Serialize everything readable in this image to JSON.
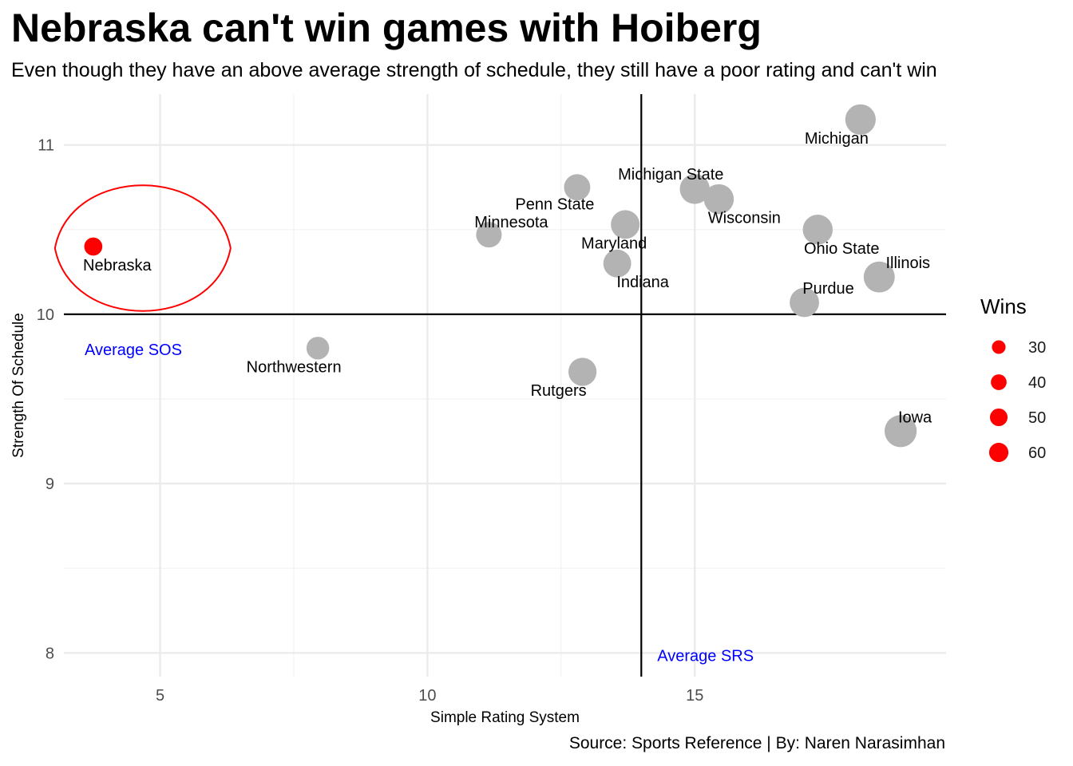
{
  "chart_data": {
    "type": "scatter",
    "title": "Nebraska can't win games with Hoiberg",
    "subtitle": "Even though they have an above average strength of schedule, they still have a poor rating and can't win",
    "caption": "Source: Sports Reference | By: Naren Narasimhan",
    "xlabel": "Simple Rating System",
    "ylabel": "Strength Of Schedule",
    "xlim": [
      3.2,
      19.7
    ],
    "ylim": [
      7.86,
      11.3
    ],
    "xticks": [
      5,
      10,
      15
    ],
    "yticks": [
      8,
      9,
      10,
      11
    ],
    "grid": true,
    "reference_lines": {
      "avg_srs": 14.0,
      "avg_sos": 10.0,
      "avg_srs_label": "Average SRS",
      "avg_sos_label": "Average SOS"
    },
    "size_legend": {
      "title": "Wins",
      "values": [
        30,
        40,
        50,
        60
      ],
      "color": "#ff0000",
      "position": "right"
    },
    "highlight_color": "#ff0000",
    "point_color": "#b3b3b3",
    "points": [
      {
        "name": "Nebraska",
        "x": 3.75,
        "y": 10.4,
        "wins": 19,
        "highlight": true
      },
      {
        "name": "Northwestern",
        "x": 7.95,
        "y": 9.8,
        "wins": 30
      },
      {
        "name": "Minnesota",
        "x": 11.15,
        "y": 10.47,
        "wins": 38
      },
      {
        "name": "Penn State",
        "x": 12.8,
        "y": 10.75,
        "wins": 40
      },
      {
        "name": "Rutgers",
        "x": 12.9,
        "y": 9.66,
        "wins": 46
      },
      {
        "name": "Indiana",
        "x": 13.55,
        "y": 10.3,
        "wins": 45
      },
      {
        "name": "Maryland",
        "x": 13.7,
        "y": 10.53,
        "wins": 48
      },
      {
        "name": "Michigan State",
        "x": 15.0,
        "y": 10.74,
        "wins": 52
      },
      {
        "name": "Wisconsin",
        "x": 15.45,
        "y": 10.68,
        "wins": 52
      },
      {
        "name": "Purdue",
        "x": 17.05,
        "y": 10.07,
        "wins": 50
      },
      {
        "name": "Ohio State",
        "x": 17.3,
        "y": 10.5,
        "wins": 52
      },
      {
        "name": "Michigan",
        "x": 18.1,
        "y": 11.15,
        "wins": 54
      },
      {
        "name": "Illinois",
        "x": 18.45,
        "y": 10.22,
        "wins": 56
      },
      {
        "name": "Iowa",
        "x": 18.85,
        "y": 9.31,
        "wins": 60
      }
    ]
  }
}
